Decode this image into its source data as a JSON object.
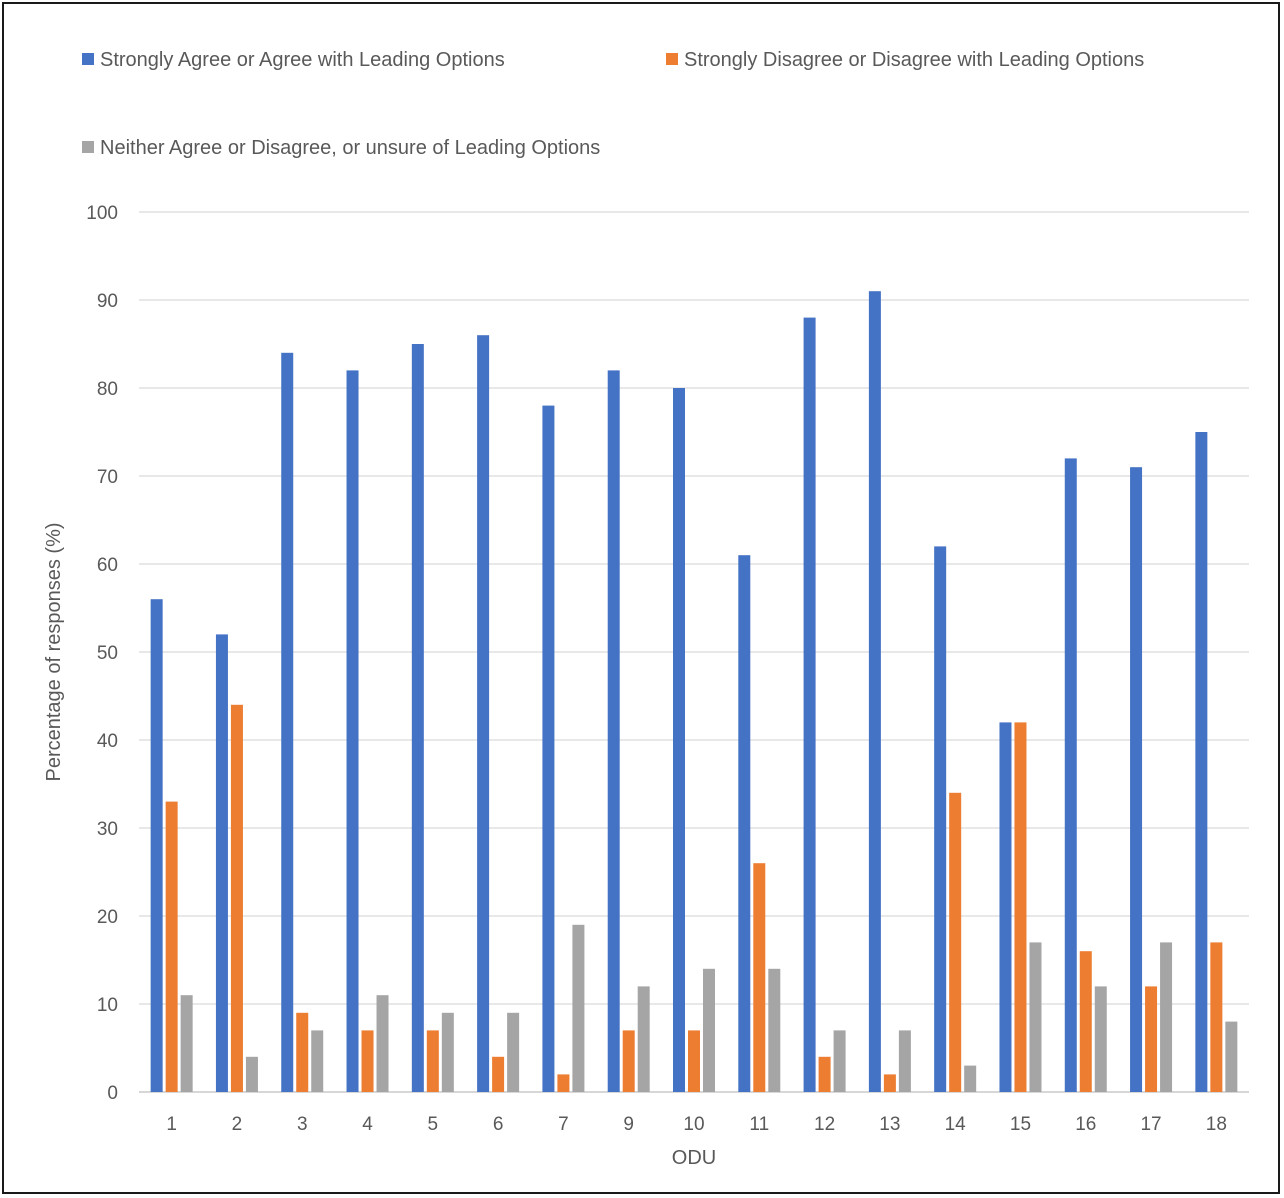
{
  "chart_data": {
    "type": "bar",
    "xlabel": "ODU",
    "ylabel": "Percentage of responses (%)",
    "ylim": [
      0,
      100
    ],
    "ytick_step": 10,
    "grid": true,
    "legend_position": "top",
    "categories": [
      "1",
      "2",
      "3",
      "4",
      "5",
      "6",
      "7",
      "9",
      "10",
      "11",
      "12",
      "13",
      "14",
      "15",
      "16",
      "17",
      "18"
    ],
    "series": [
      {
        "name": "Strongly Agree or Agree with Leading Options",
        "color": "#4472C4",
        "values": [
          56,
          52,
          84,
          82,
          85,
          86,
          78,
          82,
          80,
          61,
          88,
          91,
          62,
          42,
          72,
          71,
          75
        ]
      },
      {
        "name": "Strongly Disagree or Disagree with Leading Options",
        "color": "#ED7D31",
        "values": [
          33,
          44,
          9,
          7,
          7,
          4,
          2,
          7,
          7,
          26,
          4,
          2,
          34,
          42,
          16,
          12,
          17
        ]
      },
      {
        "name": "Neither Agree or Disagree, or unsure of Leading Options",
        "color": "#A5A5A5",
        "values": [
          11,
          4,
          7,
          11,
          9,
          9,
          19,
          12,
          14,
          14,
          7,
          7,
          3,
          17,
          12,
          17,
          8
        ]
      }
    ]
  }
}
